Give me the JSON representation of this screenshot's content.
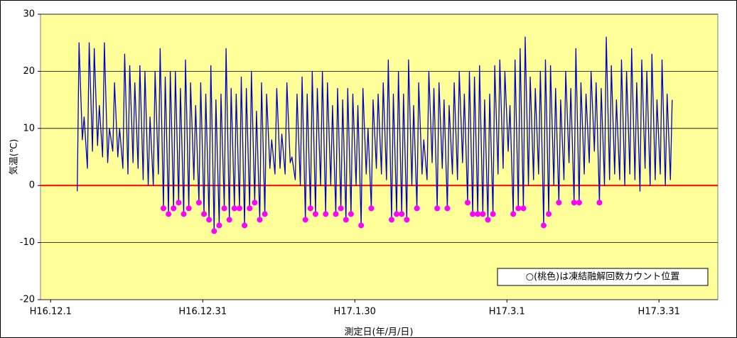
{
  "chart_data": {
    "type": "line",
    "y_label": "気温(℃)",
    "x_label": "測定日(年/月/日)",
    "annotation": "○(桃色)は凍結融解回数カウント位置",
    "plot_background": "#ffff99",
    "reference_lines": [
      {
        "value": 0,
        "color": "#ff0000"
      }
    ],
    "grid": true,
    "xlim": [
      -2,
      131.6
    ],
    "xticks": [
      {
        "value": 0,
        "label": "H16.12.1"
      },
      {
        "value": 30,
        "label": "H16.12.31"
      },
      {
        "value": 60,
        "label": "H17.1.30"
      },
      {
        "value": 90,
        "label": "H17.3.1"
      },
      {
        "value": 120,
        "label": "H17.3.31"
      }
    ],
    "ylim": [
      -20,
      30
    ],
    "yticks": [
      -20,
      -10,
      0,
      10,
      20,
      30
    ],
    "series": [
      {
        "color": "#0000cc",
        "x": [
          5.25,
          5.6,
          6.25,
          6.6,
          7.25,
          7.6,
          8.25,
          8.6,
          9.25,
          9.6,
          10.25,
          10.6,
          11.25,
          11.6,
          12.25,
          12.6,
          13.25,
          13.6,
          14.25,
          14.6,
          15.25,
          15.6,
          16.25,
          16.6,
          17.25,
          17.6,
          18.25,
          18.6,
          19.25,
          19.6,
          20.25,
          20.6,
          21.25,
          21.6,
          22.25,
          22.6,
          23.25,
          23.6,
          24.25,
          24.6,
          25.25,
          25.6,
          26.25,
          26.6,
          27.25,
          27.6,
          28.25,
          28.6,
          29.25,
          29.6,
          30.25,
          30.6,
          31.25,
          31.6,
          32.25,
          32.6,
          33.25,
          33.6,
          34.25,
          34.6,
          35.25,
          35.6,
          36.25,
          36.6,
          37.25,
          37.6,
          38.25,
          38.6,
          39.25,
          39.6,
          40.25,
          40.6,
          41.25,
          41.6,
          42.25,
          42.6,
          43.25,
          43.6,
          44.25,
          44.6,
          45.25,
          45.6,
          46.25,
          46.6,
          47.25,
          47.6,
          48.25,
          48.6,
          49.25,
          49.6,
          50.25,
          50.6,
          51.25,
          51.6,
          52.25,
          52.6,
          53.25,
          53.6,
          54.25,
          54.6,
          55.25,
          55.6,
          56.25,
          56.6,
          57.25,
          57.6,
          58.25,
          58.6,
          59.25,
          59.6,
          60.25,
          60.6,
          61.25,
          61.6,
          62.25,
          62.6,
          63.25,
          63.6,
          64.25,
          64.6,
          65.25,
          65.6,
          66.25,
          66.6,
          67.25,
          67.6,
          68.25,
          68.6,
          69.25,
          69.6,
          70.25,
          70.6,
          71.25,
          71.6,
          72.25,
          72.6,
          73.25,
          73.6,
          74.25,
          74.6,
          75.25,
          75.6,
          76.25,
          76.6,
          77.25,
          77.6,
          78.25,
          78.6,
          79.25,
          79.6,
          80.25,
          80.6,
          81.25,
          81.6,
          82.25,
          82.6,
          83.25,
          83.6,
          84.25,
          84.6,
          85.25,
          85.6,
          86.25,
          86.6,
          87.25,
          87.6,
          88.25,
          88.6,
          89.25,
          89.6,
          90.25,
          90.6,
          91.25,
          91.6,
          92.25,
          92.6,
          93.25,
          93.6,
          94.25,
          94.6,
          95.25,
          95.6,
          96.25,
          96.6,
          97.25,
          97.6,
          98.25,
          98.6,
          99.25,
          99.6,
          100.25,
          100.6,
          101.25,
          101.6,
          102.25,
          102.6,
          103.25,
          103.6,
          104.25,
          104.6,
          105.25,
          105.6,
          106.25,
          106.6,
          107.25,
          107.6,
          108.25,
          108.6,
          109.25,
          109.6,
          110.25,
          110.6,
          111.25,
          111.6,
          112.25,
          112.6,
          113.25,
          113.6,
          114.25,
          114.6,
          115.25,
          115.6,
          116.25,
          116.6,
          117.25,
          117.6,
          118.25,
          118.6,
          119.25,
          119.6,
          120.25,
          120.6,
          121.25,
          121.6,
          122.25,
          122.6
        ],
        "values": [
          -1,
          25,
          8,
          12,
          3,
          25,
          6,
          24,
          7,
          14,
          5,
          25,
          4,
          10,
          6,
          18,
          5,
          10,
          3,
          23,
          2,
          21,
          4,
          18,
          3,
          21,
          1,
          20,
          0,
          12,
          0,
          20,
          2,
          24,
          -4,
          19,
          -5,
          20,
          -4,
          20,
          -3,
          17,
          -5,
          22,
          -4,
          18,
          1,
          14,
          -3,
          18,
          -5,
          16,
          -6,
          21,
          -8,
          15,
          -7,
          16,
          -4,
          24,
          -6,
          17,
          -4,
          16,
          -4,
          19,
          -7,
          17,
          -4,
          20,
          -3,
          13,
          -6,
          18,
          -5,
          16,
          3,
          8,
          2,
          17,
          3,
          9,
          2,
          18,
          4,
          5,
          1,
          16,
          0,
          19,
          -6,
          16,
          -4,
          20,
          -5,
          17,
          0,
          20,
          -5,
          18,
          0,
          14,
          -5,
          17,
          -4,
          15,
          -6,
          17,
          -5,
          16,
          0,
          14,
          -7,
          17,
          2,
          10,
          -4,
          15,
          3,
          16,
          2,
          18,
          1,
          22,
          -6,
          16,
          -5,
          20,
          -5,
          16,
          -6,
          22,
          0,
          14,
          -4,
          18,
          2,
          8,
          1,
          20,
          4,
          17,
          -4,
          18,
          3,
          15,
          -4,
          14,
          2,
          18,
          1,
          20,
          4,
          16,
          -3,
          20,
          -5,
          19,
          -5,
          21,
          -5,
          15,
          -6,
          16,
          -5,
          21,
          2,
          22,
          3,
          20,
          6,
          14,
          -5,
          22,
          -4,
          24,
          -4,
          26,
          0,
          19,
          1,
          17,
          2,
          20,
          -7,
          22,
          -5,
          21,
          0,
          17,
          -3,
          15,
          1,
          20,
          4,
          17,
          -3,
          24,
          -3,
          18,
          2,
          16,
          4,
          20,
          6,
          18,
          -3,
          17,
          0,
          26,
          1,
          21,
          2,
          15,
          1,
          22,
          0,
          20,
          2,
          24,
          1,
          18,
          -1,
          22,
          3,
          20,
          0,
          23,
          1,
          15,
          2,
          22,
          0,
          16,
          1,
          15
        ]
      },
      {
        "color": "#ff00ff",
        "marker": "circle",
        "x": [
          22.25,
          23.25,
          24.25,
          25.25,
          26.25,
          27.25,
          29.25,
          30.25,
          31.25,
          32.25,
          33.25,
          34.25,
          35.25,
          36.25,
          37.25,
          38.25,
          39.25,
          40.25,
          41.25,
          42.25,
          50.25,
          51.25,
          52.25,
          54.25,
          56.25,
          57.25,
          58.25,
          59.25,
          61.25,
          63.25,
          67.25,
          68.25,
          69.25,
          70.25,
          72.25,
          76.25,
          78.25,
          82.25,
          83.25,
          84.25,
          85.25,
          86.25,
          87.25,
          91.25,
          92.25,
          93.25,
          97.25,
          98.25,
          100.25,
          103.25,
          104.25,
          108.25
        ],
        "values": [
          -4,
          -5,
          -4,
          -3,
          -5,
          -4,
          -3,
          -5,
          -6,
          -8,
          -7,
          -4,
          -6,
          -4,
          -4,
          -7,
          -4,
          -3,
          -6,
          -5,
          -6,
          -4,
          -5,
          -5,
          -5,
          -4,
          -6,
          -5,
          -7,
          -4,
          -6,
          -5,
          -5,
          -6,
          -4,
          -4,
          -4,
          -3,
          -5,
          -5,
          -5,
          -6,
          -5,
          -5,
          -4,
          -4,
          -7,
          -5,
          -3,
          -3,
          -3,
          -3
        ]
      }
    ]
  }
}
